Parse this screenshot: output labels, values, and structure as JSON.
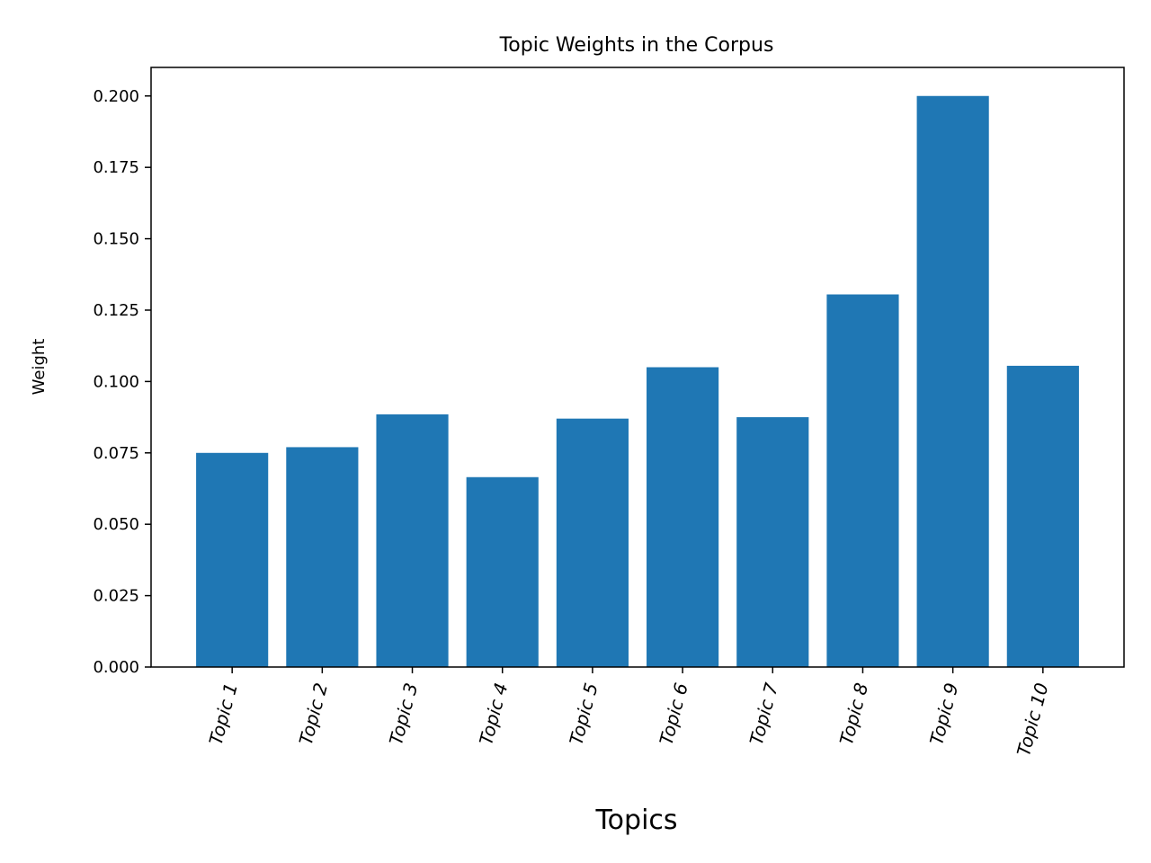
{
  "chart_data": {
    "type": "bar",
    "title": "Topic Weights in the Corpus",
    "xlabel": "Topics",
    "ylabel": "Weight",
    "categories": [
      "Topic 1",
      "Topic 2",
      "Topic 3",
      "Topic 4",
      "Topic 5",
      "Topic 6",
      "Topic 7",
      "Topic 8",
      "Topic 9",
      "Topic 10"
    ],
    "values": [
      0.075,
      0.077,
      0.0885,
      0.0665,
      0.087,
      0.105,
      0.0875,
      0.1305,
      0.2,
      0.1055
    ],
    "ylim": [
      0,
      0.21
    ],
    "yticks": [
      "0.000",
      "0.025",
      "0.050",
      "0.075",
      "0.100",
      "0.125",
      "0.150",
      "0.175",
      "0.200"
    ],
    "bar_color": "#1f77b4",
    "grid": false,
    "legend": false
  }
}
